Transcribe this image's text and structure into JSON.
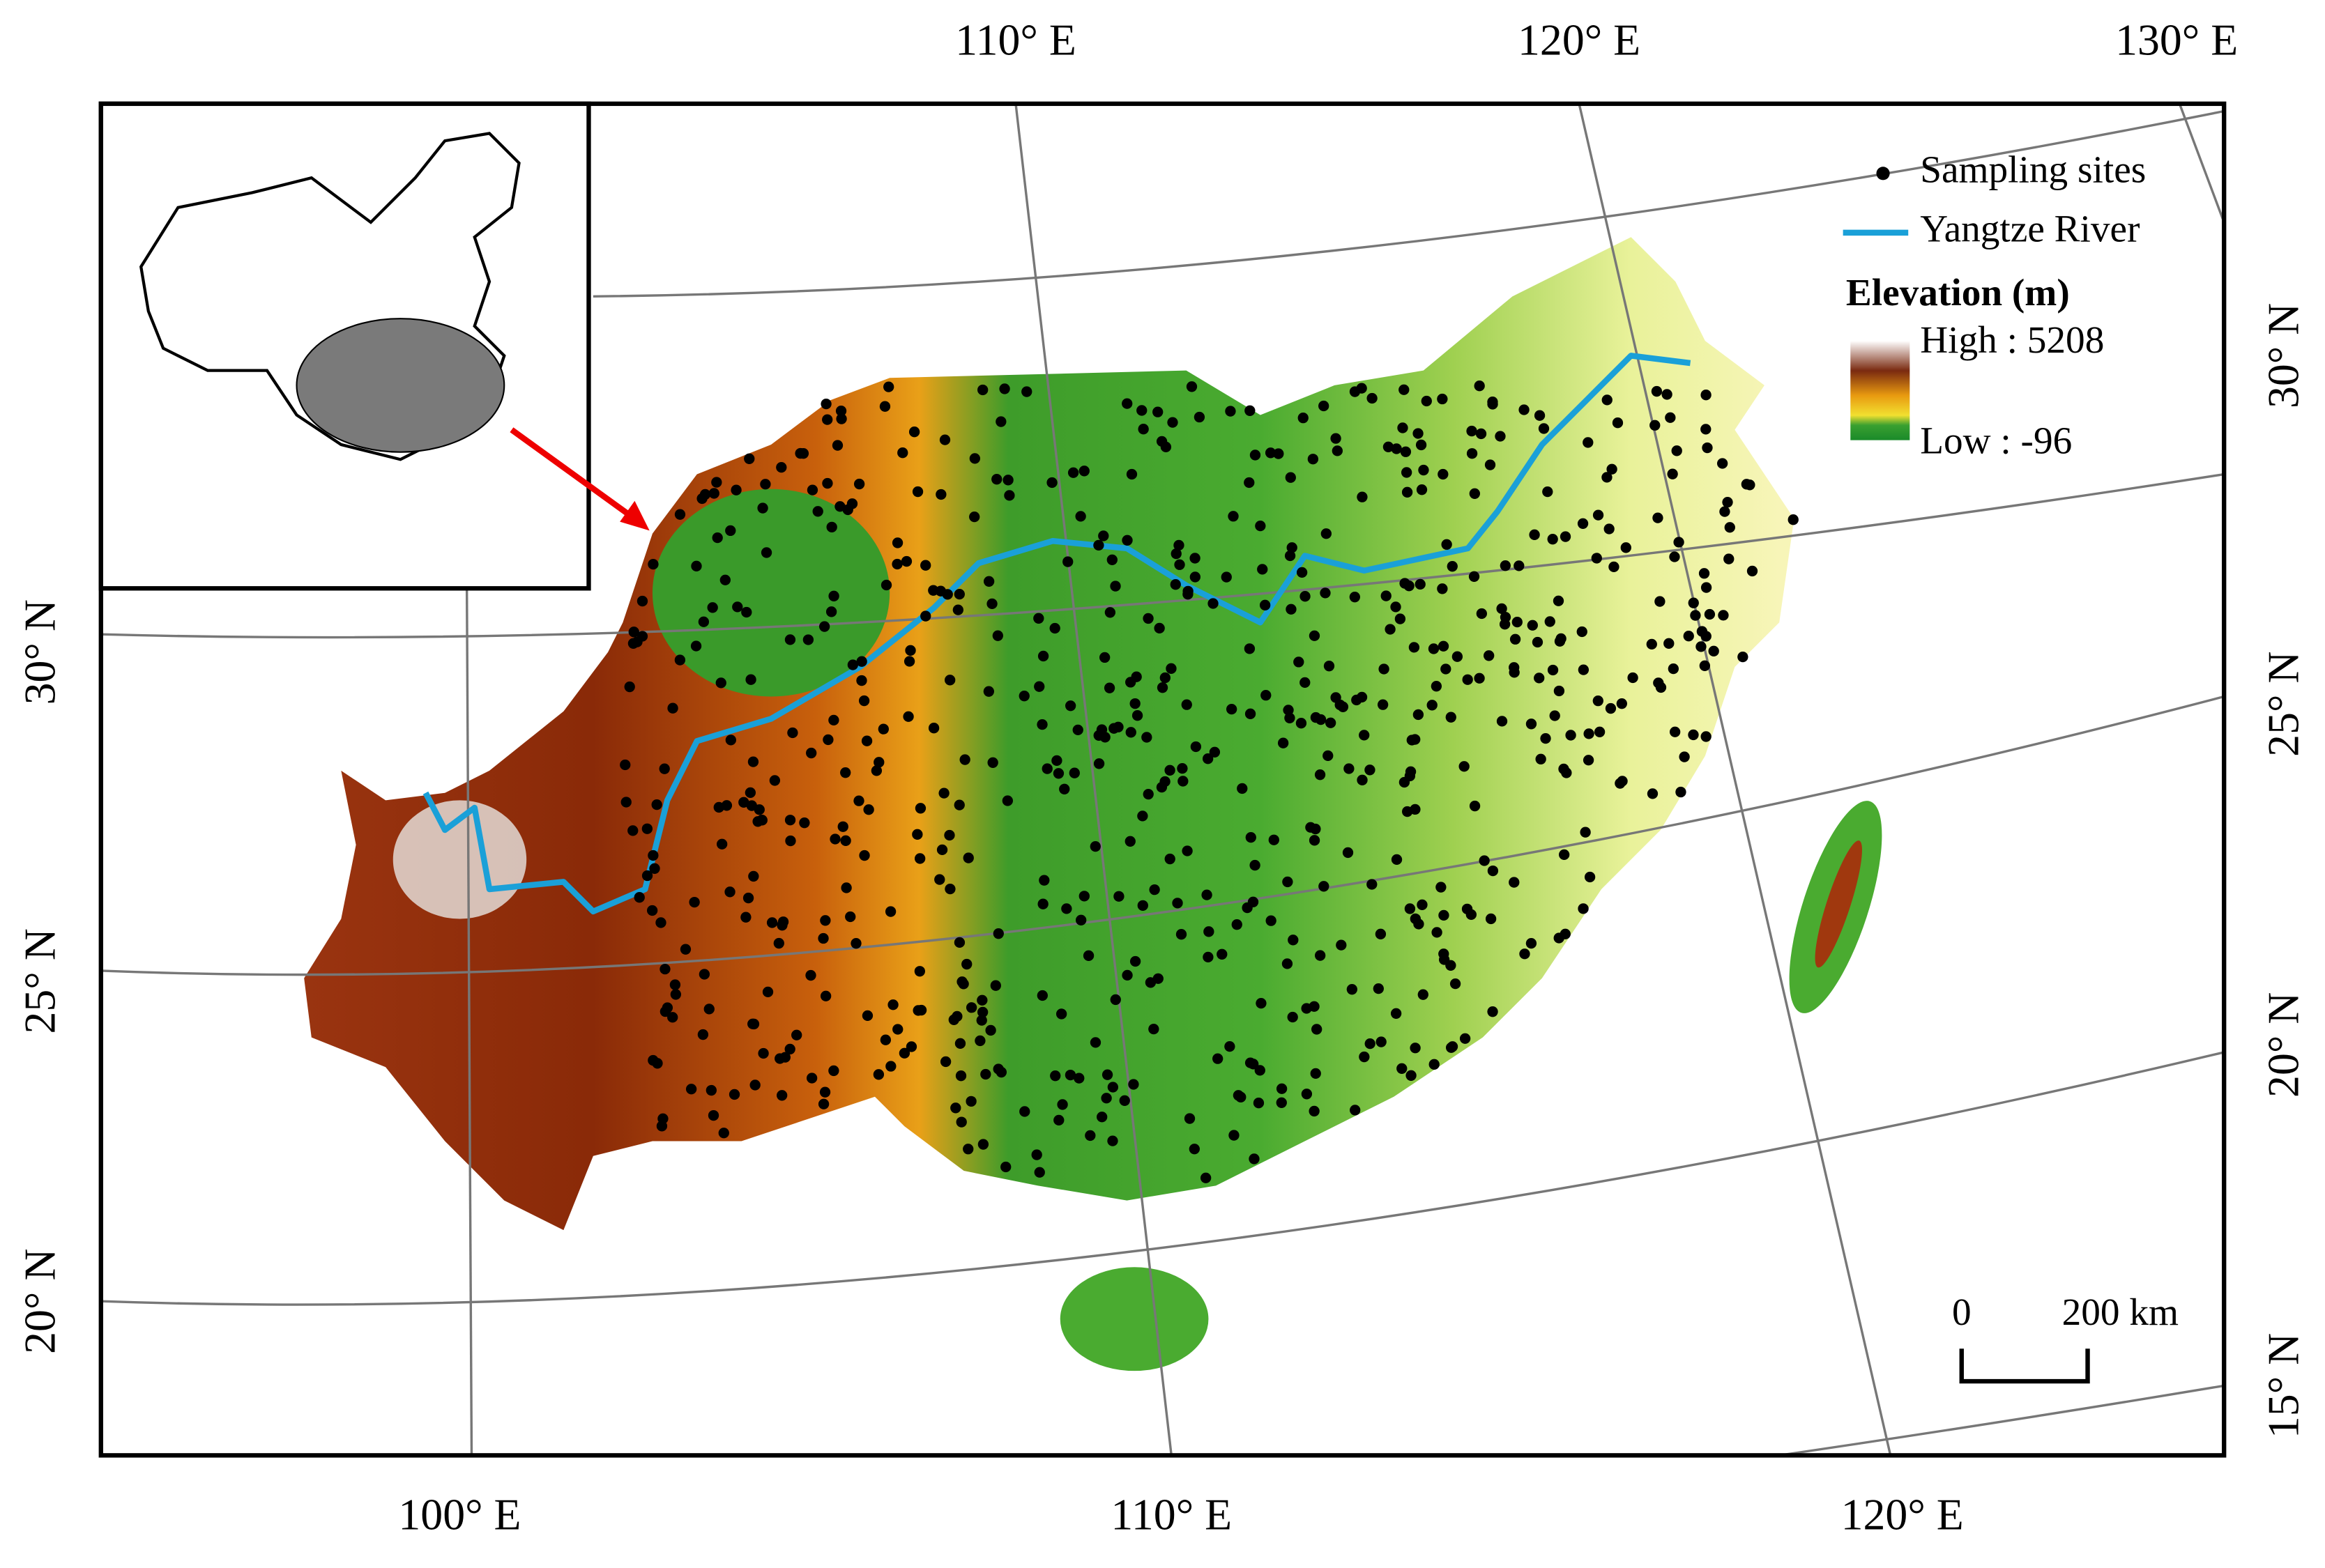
{
  "graticule": {
    "top_labels": [
      "110° E",
      "120° E",
      "130° E"
    ],
    "bottom_labels": [
      "100° E",
      "110° E",
      "120° E"
    ],
    "left_labels": [
      "30° N",
      "25° N",
      "20° N"
    ],
    "right_labels": [
      "30° N",
      "25° N",
      "20° N",
      "15° N"
    ]
  },
  "legend": {
    "sites": "Sampling sites",
    "river": "Yangtze River",
    "elevation_title": "Elevation (m)",
    "high": "High : 5208",
    "low": "Low : -96"
  },
  "scale_bar": {
    "start": "0",
    "end": "200 km"
  }
}
